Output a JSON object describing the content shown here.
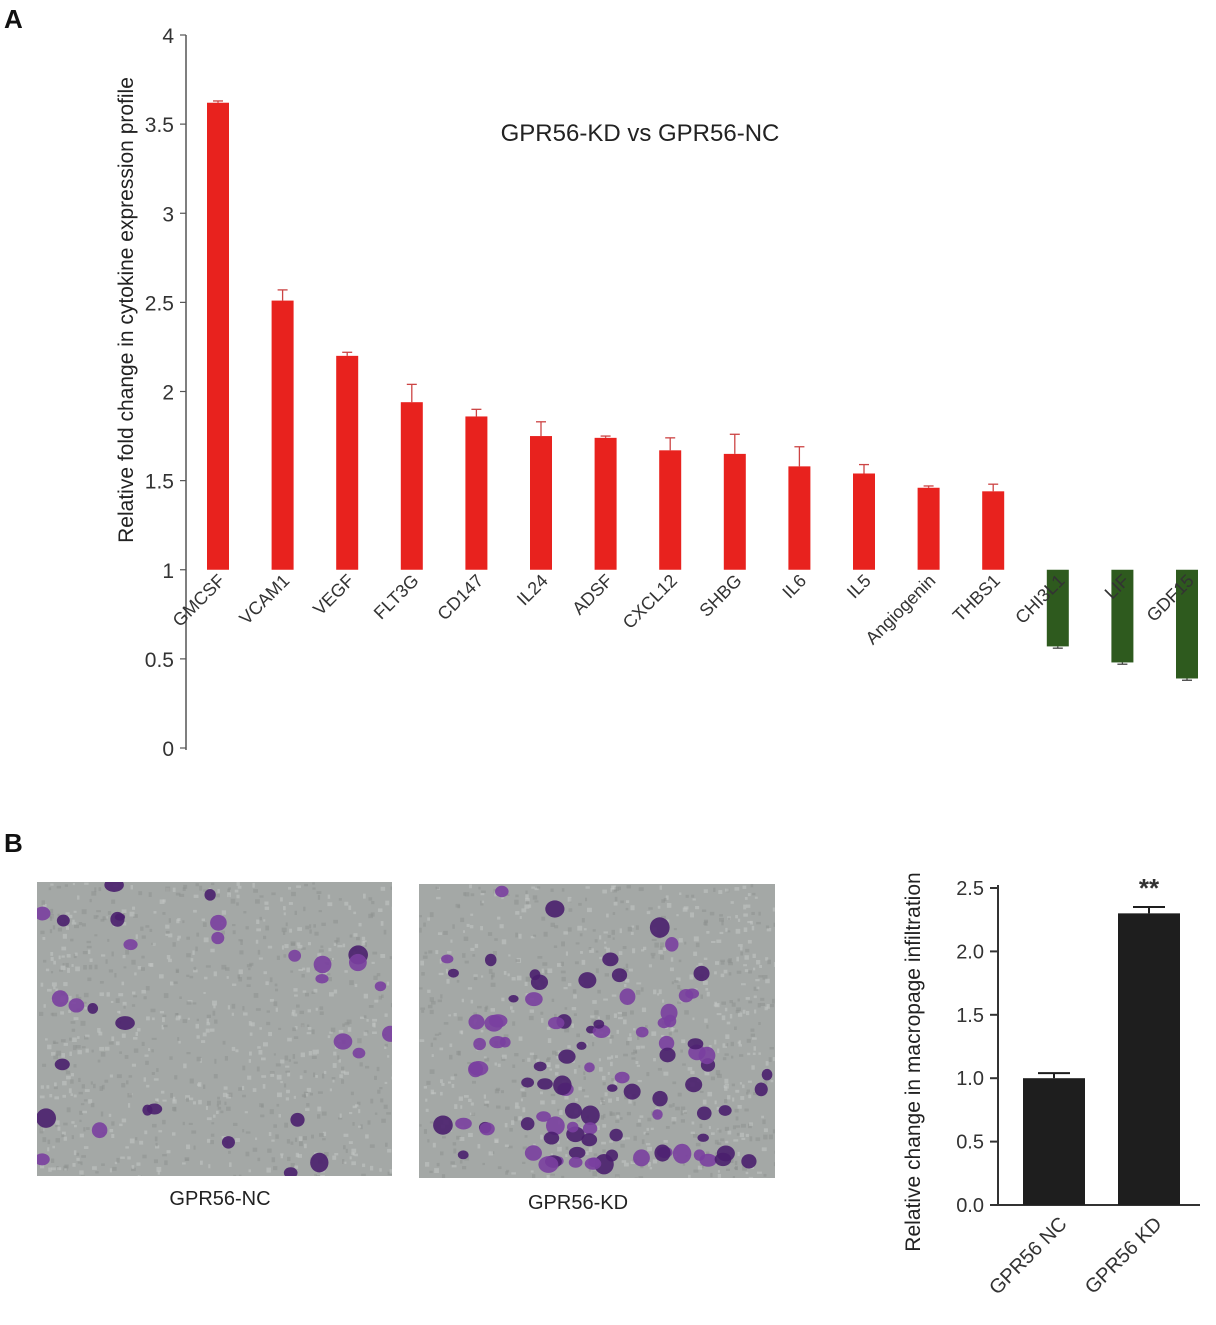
{
  "panel_labels": {
    "a": "A",
    "b": "B"
  },
  "chart_data": [
    {
      "type": "bar",
      "title": "GPR56-KD vs GPR56-NC",
      "ylabel": "Relative fold change in cytokine expression profile",
      "ylim": [
        0,
        4
      ],
      "baseline": 1,
      "yticks": [
        "0",
        "0.5",
        "1",
        "1.5",
        "2",
        "2.5",
        "3",
        "3.5",
        "4"
      ],
      "categories": [
        "GMCSF",
        "VCAM1",
        "VEGF",
        "FLT3G",
        "CD147",
        "IL24",
        "ADSF",
        "CXCL12",
        "SHBG",
        "IL6",
        "IL5",
        "Angiogenin",
        "THBS1",
        "CHI3L1",
        "LIF",
        "GDF15"
      ],
      "values": [
        3.62,
        2.51,
        2.2,
        1.94,
        1.86,
        1.75,
        1.74,
        1.67,
        1.65,
        1.58,
        1.54,
        1.46,
        1.44,
        0.57,
        0.48,
        0.39
      ],
      "errors": [
        0.01,
        0.06,
        0.02,
        0.1,
        0.04,
        0.08,
        0.01,
        0.07,
        0.11,
        0.11,
        0.05,
        0.01,
        0.04,
        0.01,
        0.01,
        0.01
      ],
      "colors": {
        "up": "#e8221e",
        "down": "#2e5a1e"
      }
    },
    {
      "type": "bar",
      "ylabel": "Relative change in macropage infiltration",
      "ylim": [
        0,
        2.5
      ],
      "yticks": [
        "0.0",
        "0.5",
        "1.0",
        "1.5",
        "2.0",
        "2.5"
      ],
      "categories": [
        "GPR56 NC",
        "GPR56 KD"
      ],
      "values": [
        1.0,
        2.3
      ],
      "errors": [
        0.04,
        0.05
      ],
      "annotation": "**",
      "colors": {
        "bar": "#1e1e1e"
      }
    }
  ],
  "micrographs": [
    {
      "caption": "GPR56-NC"
    },
    {
      "caption": "GPR56-KD"
    }
  ]
}
